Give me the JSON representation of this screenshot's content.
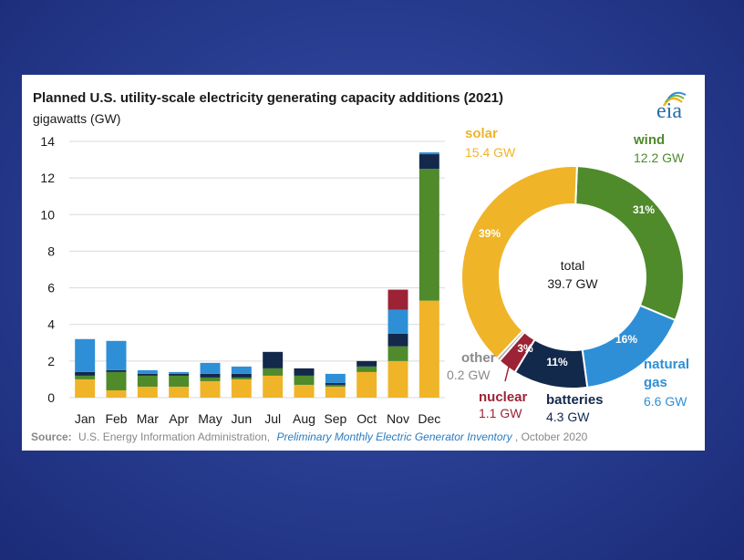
{
  "colors": {
    "background": "#2a3f93",
    "solar": "#f0b429",
    "wind": "#4f8a2b",
    "natural_gas": "#2e8fd6",
    "batteries": "#13294b",
    "nuclear": "#9b2335",
    "other": "#a8a8a8",
    "logo": "#2a6ea8"
  },
  "logo": {
    "text": "eia"
  },
  "chart_data": [
    {
      "type": "bar",
      "stacked": true,
      "title": "Planned U.S. utility-scale electricity generating capacity additions (2021)",
      "ylabel": "gigawatts (GW)",
      "ylim": [
        0,
        14
      ],
      "yticks": [
        "0",
        "2",
        "4",
        "6",
        "8",
        "10",
        "12",
        "14"
      ],
      "ytick_values": [
        0,
        2,
        4,
        6,
        8,
        10,
        12,
        14
      ],
      "grid": true,
      "categories": [
        "Jan",
        "Feb",
        "Mar",
        "Apr",
        "May",
        "Jun",
        "Jul",
        "Aug",
        "Sep",
        "Oct",
        "Nov",
        "Dec"
      ],
      "series": [
        {
          "name": "solar",
          "color": "#f0b429",
          "values": [
            1.0,
            0.4,
            0.6,
            0.6,
            0.9,
            1.0,
            1.2,
            0.7,
            0.6,
            1.4,
            2.0,
            5.3
          ]
        },
        {
          "name": "wind",
          "color": "#4f8a2b",
          "values": [
            0.2,
            1.0,
            0.6,
            0.6,
            0.2,
            0.1,
            0.4,
            0.5,
            0.1,
            0.3,
            0.8,
            7.2
          ]
        },
        {
          "name": "batteries",
          "color": "#13294b",
          "values": [
            0.2,
            0.1,
            0.1,
            0.1,
            0.2,
            0.2,
            0.9,
            0.4,
            0.1,
            0.3,
            0.7,
            0.8
          ]
        },
        {
          "name": "natural gas",
          "color": "#2e8fd6",
          "values": [
            1.8,
            1.6,
            0.2,
            0.1,
            0.6,
            0.4,
            0.0,
            0.0,
            0.5,
            0.0,
            1.3,
            0.1
          ]
        },
        {
          "name": "nuclear",
          "color": "#9b2335",
          "values": [
            0.0,
            0.0,
            0.0,
            0.0,
            0.0,
            0.0,
            0.0,
            0.0,
            0.0,
            0.0,
            1.1,
            0.0
          ]
        },
        {
          "name": "other",
          "color": "#a8a8a8",
          "values": [
            0.0,
            0.0,
            0.0,
            0.0,
            0.0,
            0.0,
            0.0,
            0.0,
            0.0,
            0.0,
            0.0,
            0.0
          ]
        }
      ]
    },
    {
      "type": "pie",
      "donut": true,
      "center_label": {
        "line1": "total",
        "line2": "39.7 GW"
      },
      "slices": [
        {
          "name": "solar",
          "label": "solar",
          "value": 15.4,
          "value_text": "15.4 GW",
          "pct": "39%",
          "color": "#f0b429"
        },
        {
          "name": "wind",
          "label": "wind",
          "value": 12.2,
          "value_text": "12.2 GW",
          "pct": "31%",
          "color": "#4f8a2b"
        },
        {
          "name": "natural gas",
          "label": "natural gas",
          "value": 6.6,
          "value_text": "6.6 GW",
          "pct": "16%",
          "color": "#2e8fd6"
        },
        {
          "name": "batteries",
          "label": "batteries",
          "value": 4.3,
          "value_text": "4.3 GW",
          "pct": "11%",
          "color": "#13294b"
        },
        {
          "name": "nuclear",
          "label": "nuclear",
          "value": 1.1,
          "value_text": "1.1 GW",
          "pct": "3%",
          "color": "#9b2335"
        },
        {
          "name": "other",
          "label": "other",
          "value": 0.2,
          "value_text": "0.2 GW",
          "pct": "",
          "color": "#a8a8a8"
        }
      ]
    }
  ],
  "source": {
    "prefix": "Source:",
    "agency": "U.S. Energy Information Administration,",
    "publication": "Preliminary Monthly Electric Generator Inventory",
    "date": ", October 2020"
  }
}
